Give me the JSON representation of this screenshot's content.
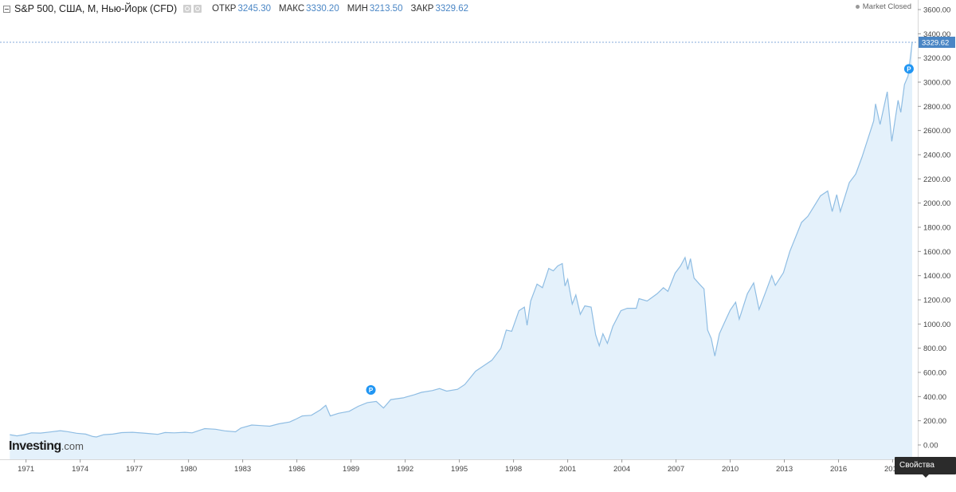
{
  "header": {
    "title": "S&P 500, США, M, Нью-Йорк (CFD)",
    "open_label": "ОТКР",
    "open_value": "3245.30",
    "high_label": "МАКС",
    "high_value": "3330.20",
    "low_label": "МИН",
    "low_value": "3213.50",
    "close_label": "ЗАКР",
    "close_value": "3329.62",
    "market_status": "Market Closed"
  },
  "logo": {
    "brand": "Investing",
    "suffix": ".com"
  },
  "scale_tooltip": "Свойства шкал",
  "last_price_label": "3329.62",
  "colors": {
    "line": "#8fbde3",
    "fill": "#e4f1fb",
    "last_price_badge": "#4a86c5",
    "marker": "#2196f3",
    "axis_text": "#444444"
  },
  "chart_data": {
    "type": "area",
    "title": "S&P 500, США, M, Нью-Йорк (CFD)",
    "xlabel": "",
    "ylabel": "",
    "ylim": [
      -10,
      3630
    ],
    "xlim": [
      1970.0,
      2020.3
    ],
    "y_ticks": [
      0,
      200,
      400,
      600,
      800,
      1000,
      1200,
      1400,
      1600,
      1800,
      2000,
      2200,
      2400,
      2600,
      2800,
      3000,
      3200,
      3400,
      3600
    ],
    "y_tick_labels": [
      "0.00",
      "200.00",
      "400.00",
      "600.00",
      "800.00",
      "1000.00",
      "1200.00",
      "1400.00",
      "1600.00",
      "1800.00",
      "2000.00",
      "2200.00",
      "2400.00",
      "2600.00",
      "2800.00",
      "3000.00",
      "3200.00",
      "3400.00",
      "3600.00"
    ],
    "x_ticks": [
      1971,
      1974,
      1977,
      1980,
      1983,
      1986,
      1989,
      1992,
      1995,
      1998,
      2001,
      2004,
      2007,
      2010,
      2013,
      2016,
      2019
    ],
    "x_tick_labels": [
      "1971",
      "1974",
      "1977",
      "1980",
      "1983",
      "1986",
      "1989",
      "1992",
      "1995",
      "1998",
      "2001",
      "2004",
      "2007",
      "2010",
      "2013",
      "2016",
      "2019"
    ],
    "grid": false,
    "last_price": 3329.62,
    "series": [
      {
        "name": "S&P 500",
        "points": [
          [
            1970.1,
            85
          ],
          [
            1970.5,
            75
          ],
          [
            1970.9,
            85
          ],
          [
            1971.3,
            100
          ],
          [
            1971.8,
            98
          ],
          [
            1972.3,
            107
          ],
          [
            1972.9,
            118
          ],
          [
            1973.3,
            110
          ],
          [
            1973.8,
            97
          ],
          [
            1974.3,
            90
          ],
          [
            1974.7,
            70
          ],
          [
            1974.9,
            66
          ],
          [
            1975.3,
            85
          ],
          [
            1975.8,
            90
          ],
          [
            1976.3,
            102
          ],
          [
            1976.9,
            105
          ],
          [
            1977.5,
            98
          ],
          [
            1977.9,
            93
          ],
          [
            1978.3,
            88
          ],
          [
            1978.7,
            103
          ],
          [
            1979.2,
            100
          ],
          [
            1979.8,
            105
          ],
          [
            1980.2,
            100
          ],
          [
            1980.9,
            135
          ],
          [
            1981.5,
            130
          ],
          [
            1982.0,
            117
          ],
          [
            1982.6,
            109
          ],
          [
            1982.9,
            140
          ],
          [
            1983.5,
            165
          ],
          [
            1984.0,
            160
          ],
          [
            1984.5,
            155
          ],
          [
            1985.0,
            175
          ],
          [
            1985.6,
            190
          ],
          [
            1985.9,
            210
          ],
          [
            1986.3,
            240
          ],
          [
            1986.8,
            245
          ],
          [
            1987.3,
            290
          ],
          [
            1987.6,
            328
          ],
          [
            1987.85,
            240
          ],
          [
            1988.3,
            262
          ],
          [
            1988.9,
            278
          ],
          [
            1989.4,
            320
          ],
          [
            1989.9,
            350
          ],
          [
            1990.4,
            360
          ],
          [
            1990.8,
            305
          ],
          [
            1991.2,
            375
          ],
          [
            1991.9,
            390
          ],
          [
            1992.5,
            415
          ],
          [
            1992.9,
            435
          ],
          [
            1993.5,
            450
          ],
          [
            1993.9,
            466
          ],
          [
            1994.3,
            445
          ],
          [
            1994.9,
            460
          ],
          [
            1995.3,
            500
          ],
          [
            1995.9,
            610
          ],
          [
            1996.3,
            650
          ],
          [
            1996.8,
            700
          ],
          [
            1997.3,
            800
          ],
          [
            1997.6,
            950
          ],
          [
            1997.9,
            940
          ],
          [
            1998.3,
            1110
          ],
          [
            1998.6,
            1140
          ],
          [
            1998.75,
            990
          ],
          [
            1998.95,
            1190
          ],
          [
            1999.3,
            1330
          ],
          [
            1999.6,
            1300
          ],
          [
            1999.95,
            1460
          ],
          [
            2000.2,
            1440
          ],
          [
            2000.45,
            1480
          ],
          [
            2000.7,
            1500
          ],
          [
            2000.85,
            1315
          ],
          [
            2001.0,
            1370
          ],
          [
            2001.25,
            1165
          ],
          [
            2001.45,
            1240
          ],
          [
            2001.7,
            1080
          ],
          [
            2001.95,
            1150
          ],
          [
            2002.3,
            1140
          ],
          [
            2002.55,
            910
          ],
          [
            2002.75,
            820
          ],
          [
            2002.95,
            920
          ],
          [
            2003.2,
            840
          ],
          [
            2003.5,
            980
          ],
          [
            2003.95,
            1110
          ],
          [
            2004.3,
            1130
          ],
          [
            2004.8,
            1130
          ],
          [
            2004.95,
            1210
          ],
          [
            2005.4,
            1190
          ],
          [
            2005.95,
            1250
          ],
          [
            2006.3,
            1300
          ],
          [
            2006.55,
            1270
          ],
          [
            2006.95,
            1420
          ],
          [
            2007.25,
            1480
          ],
          [
            2007.5,
            1550
          ],
          [
            2007.65,
            1450
          ],
          [
            2007.8,
            1540
          ],
          [
            2008.0,
            1380
          ],
          [
            2008.3,
            1330
          ],
          [
            2008.55,
            1290
          ],
          [
            2008.75,
            950
          ],
          [
            2008.95,
            880
          ],
          [
            2009.15,
            735
          ],
          [
            2009.4,
            920
          ],
          [
            2009.8,
            1050
          ],
          [
            2010.0,
            1115
          ],
          [
            2010.3,
            1180
          ],
          [
            2010.5,
            1040
          ],
          [
            2010.95,
            1250
          ],
          [
            2011.3,
            1340
          ],
          [
            2011.6,
            1120
          ],
          [
            2011.95,
            1260
          ],
          [
            2012.3,
            1400
          ],
          [
            2012.5,
            1320
          ],
          [
            2012.95,
            1425
          ],
          [
            2013.3,
            1600
          ],
          [
            2013.95,
            1840
          ],
          [
            2014.3,
            1890
          ],
          [
            2014.8,
            2010
          ],
          [
            2015.0,
            2060
          ],
          [
            2015.4,
            2100
          ],
          [
            2015.65,
            1930
          ],
          [
            2015.9,
            2070
          ],
          [
            2016.1,
            1930
          ],
          [
            2016.6,
            2170
          ],
          [
            2016.95,
            2240
          ],
          [
            2017.3,
            2380
          ],
          [
            2017.95,
            2680
          ],
          [
            2018.05,
            2820
          ],
          [
            2018.3,
            2650
          ],
          [
            2018.7,
            2920
          ],
          [
            2018.95,
            2510
          ],
          [
            2019.3,
            2850
          ],
          [
            2019.45,
            2750
          ],
          [
            2019.65,
            2980
          ],
          [
            2019.85,
            3050
          ],
          [
            2020.0,
            3230
          ],
          [
            2020.08,
            3329.62
          ]
        ]
      }
    ],
    "markers": [
      {
        "label": "P",
        "x": 1990.1,
        "y": 455
      },
      {
        "label": "P",
        "x": 2019.9,
        "y": 3110
      }
    ]
  }
}
